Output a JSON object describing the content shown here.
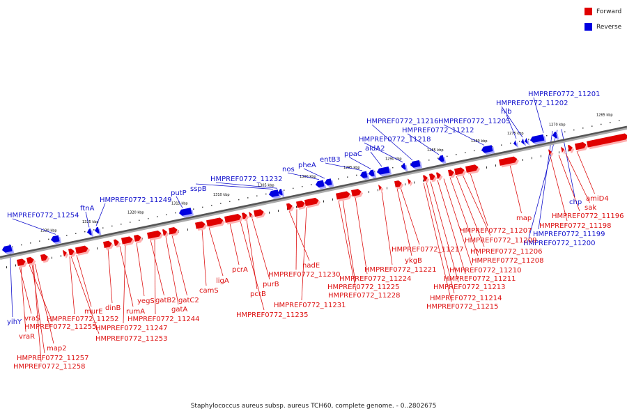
{
  "legend": {
    "forward": "Forward",
    "reverse": "Reverse"
  },
  "colors": {
    "forward": "#e00000",
    "reverse": "#0000e0",
    "forward_line": "#dd1111",
    "reverse_line": "#1111cc",
    "backbone": "#555555"
  },
  "caption": "Staphylococcus aureus subsp. aureus TCH60, complete genome. - 0..2802675",
  "scale_labels": [
    "1330 kbp",
    "1325 kbp",
    "1320 kbp",
    "1315 kbp",
    "1310 kbp",
    "1305 kbp",
    "1300 kbp",
    "1295 kbp",
    "1290 kbp",
    "1285 kbp",
    "1280 kbp",
    "1275 kbp",
    "1270 kbp",
    "1265 kbp"
  ],
  "reverse_labels": [
    "HMPREF0772_11254",
    "ftnA",
    "HMPREF0772_11249",
    "putP",
    "sspB",
    "HMPREF0772_11232",
    "nos",
    "pheA",
    "entB3",
    "ppaC",
    "aldA2",
    "HMPREF0772_11218",
    "HMPREF0772_11216",
    "HMPREF0772_11212",
    "HMPREF0772_11205",
    "hlb",
    "HMPREF0772_11202",
    "HMPREF0772_11201",
    "chp",
    "HMPREF0772_11199",
    "HMPREF0772_11200",
    "yihY"
  ],
  "forward_labels": [
    "vraS",
    "vraR",
    "HMPREF0772_11255",
    "map2",
    "HMPREF0772_11257",
    "HMPREF0772_11258",
    "murE",
    "HMPREF0772_11252",
    "HMPREF0772_11253",
    "dinB",
    "rumA",
    "HMPREF0772_11247",
    "yegS",
    "gatB2",
    "HMPREF0772_11244",
    "gatC2",
    "gatA",
    "camS",
    "ligA",
    "pcrA",
    "pcrB",
    "purB",
    "HMPREF0772_11235",
    "nadE",
    "HMPREF0772_11230",
    "HMPREF0772_11231",
    "HMPREF0772_11228",
    "HMPREF0772_11225",
    "HMPREF0772_11224",
    "ykgB",
    "HMPREF0772_11221",
    "HMPREF0772_11217",
    "HMPREF0772_11215",
    "HMPREF0772_11214",
    "HMPREF0772_11213",
    "HMPREF0772_11211",
    "HMPREF0772_11210",
    "HMPREF0772_11208",
    "HMPREF0772_11206",
    "HMPREF0772_11209",
    "HMPREF0772_11207",
    "map",
    "HMPREF0772_11198",
    "HMPREF0772_11196",
    "sak",
    "amiD4"
  ]
}
